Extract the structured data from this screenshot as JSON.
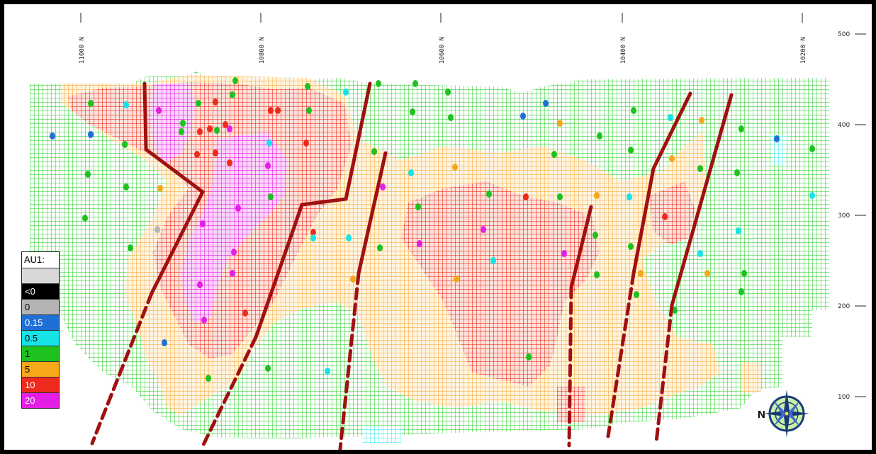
{
  "northing_labels": [
    "11000 N",
    "10800 N",
    "10600 N",
    "10400 N",
    "10200 N"
  ],
  "elevation_labels": [
    "500",
    "400",
    "300",
    "200",
    "100"
  ],
  "legend": {
    "title": "AU1:",
    "entries": [
      {
        "label": "",
        "color": "#d8d8d8",
        "text_color": "#000000"
      },
      {
        "label": "<0",
        "color": "#000000",
        "text_color": "#ffffff"
      },
      {
        "label": "0",
        "color": "#b4b4b4",
        "text_color": "#000000"
      },
      {
        "label": "0.15",
        "color": "#1f6fd6",
        "text_color": "#ffffff"
      },
      {
        "label": "0.5",
        "color": "#16e3e8",
        "text_color": "#000000"
      },
      {
        "label": "1",
        "color": "#1ec21e",
        "text_color": "#000000"
      },
      {
        "label": "5",
        "color": "#f7a818",
        "text_color": "#000000"
      },
      {
        "label": "10",
        "color": "#ee2a1c",
        "text_color": "#ffffff"
      },
      {
        "label": "20",
        "color": "#e51ee5",
        "text_color": "#ffffff"
      }
    ]
  },
  "compass": {
    "label": "N"
  },
  "colors": {
    "green": "#3fd43f",
    "orange": "#fbb85a",
    "red": "#ef3a2a",
    "magenta": "#e63ae6",
    "cyan": "#3fe9ee",
    "fault": "#a01010"
  }
}
